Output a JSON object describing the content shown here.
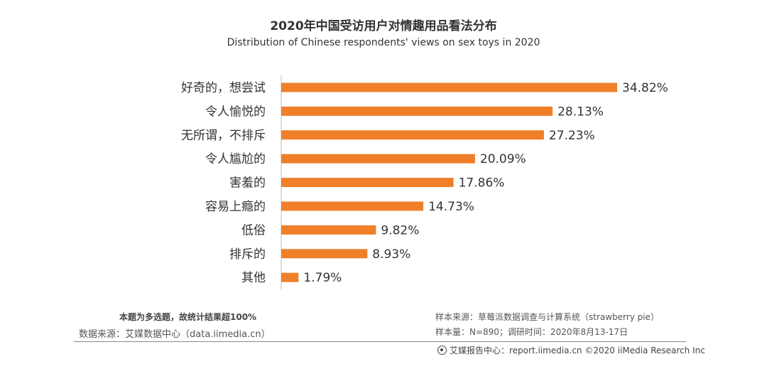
{
  "header": {
    "title": "2020年中国受访用户对情趣用品看法分布",
    "subtitle": "Distribution of Chinese respondents' views on sex toys in 2020"
  },
  "chart_data": {
    "type": "bar",
    "orientation": "horizontal",
    "title": "2020年中国受访用户对情趣用品看法分布",
    "subtitle": "Distribution of Chinese respondents' views on sex toys in 2020",
    "categories": [
      "好奇的，想尝试",
      "令人愉悦的",
      "无所谓，不排斥",
      "令人尴尬的",
      "害羞的",
      "容易上瘾的",
      "低俗",
      "排斥的",
      "其他"
    ],
    "values": [
      34.82,
      28.13,
      27.23,
      20.09,
      17.86,
      14.73,
      9.82,
      8.93,
      1.79
    ],
    "value_labels": [
      "34.82%",
      "28.13%",
      "27.23%",
      "20.09%",
      "17.86%",
      "14.73%",
      "9.82%",
      "8.93%",
      "1.79%"
    ],
    "unit": "%",
    "bar_color": "#F07F2A",
    "xlim": [
      0,
      35
    ],
    "grid": false,
    "legend": "none"
  },
  "footer": {
    "note": "本题为多选题，故统计结果超100%",
    "source_left": "数据来源：艾媒数据中心（data.iimedia.cn）",
    "sample_source": "样本来源：草莓派数据调查与计算系统（strawberry pie）",
    "sample_size": "样本量：N=890；调研时间：2020年8月13-17日",
    "copyright": "艾媒报告中心：report.iimedia.cn  ©2020  iiMedia Research  Inc"
  }
}
